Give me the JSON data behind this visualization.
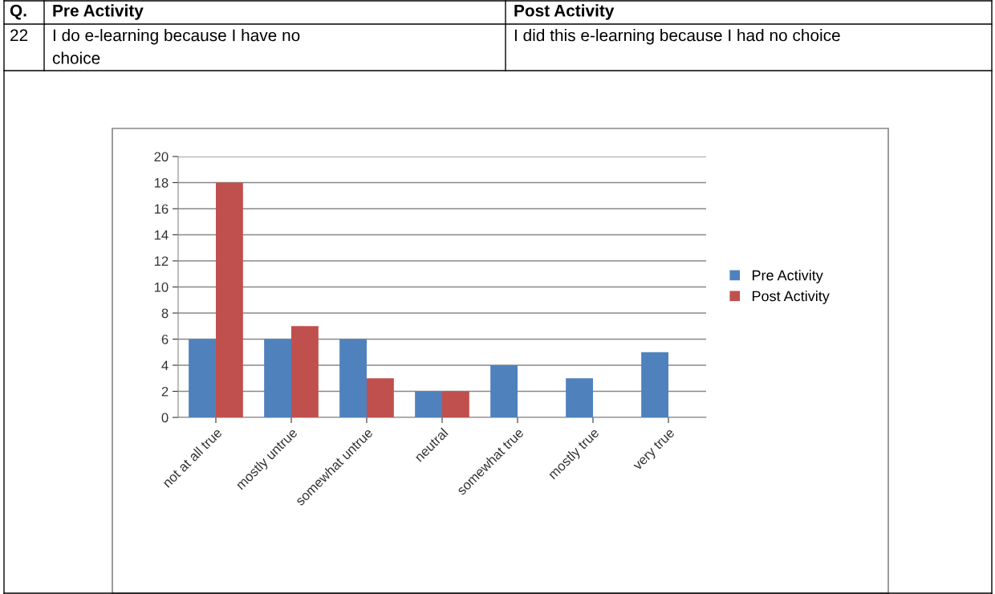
{
  "chart_data": {
    "type": "bar",
    "annotations": [
      "Q.",
      "Pre Activity",
      "Post Activity",
      "22",
      "I do e-learning because I have no\nchoice",
      "I did this e-learning because I had no choice"
    ],
    "categories": [
      "not at all true",
      "mostly untrue",
      "somewhat untrue",
      "neutral",
      "somewhat true",
      "mostly true",
      "very true"
    ],
    "series": [
      {
        "name": "Pre Activity",
        "color": "#4f81bd",
        "values": [
          6,
          6,
          6,
          2,
          4,
          3,
          5
        ]
      },
      {
        "name": "Post Activity",
        "color": "#c0504d",
        "values": [
          18,
          7,
          3,
          2,
          0,
          0,
          0
        ]
      }
    ],
    "ylim": [
      0,
      20
    ],
    "yticks": [
      0,
      2,
      4,
      6,
      8,
      10,
      12,
      14,
      16,
      18,
      20
    ],
    "grid": "y",
    "legend": "right"
  }
}
